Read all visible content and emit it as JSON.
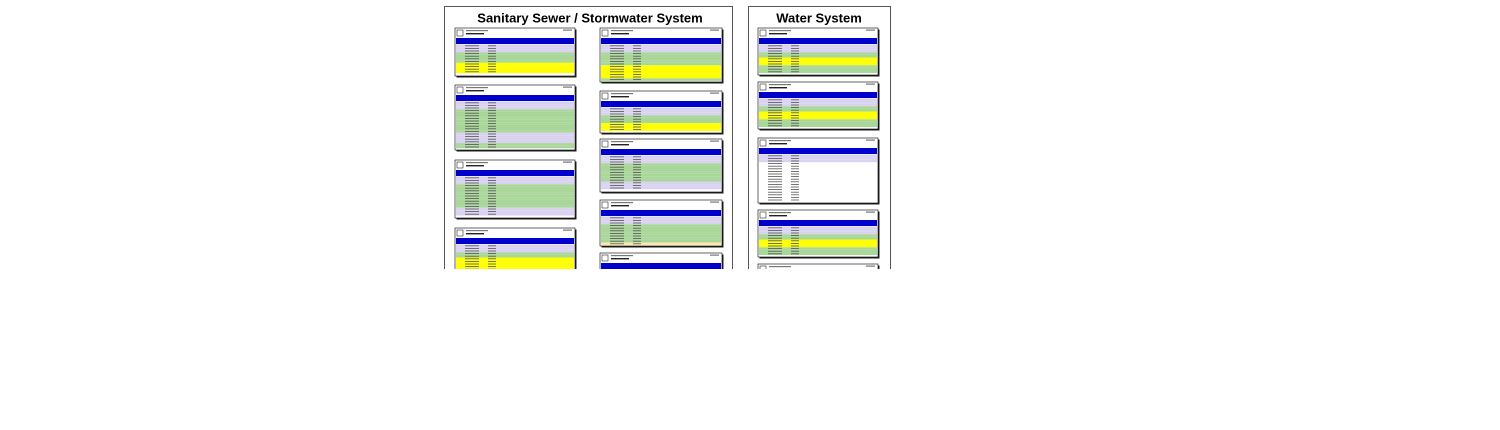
{
  "panels": [
    {
      "title": "Sanitary Sewer / Stormwater System"
    },
    {
      "title": "Water System"
    }
  ]
}
